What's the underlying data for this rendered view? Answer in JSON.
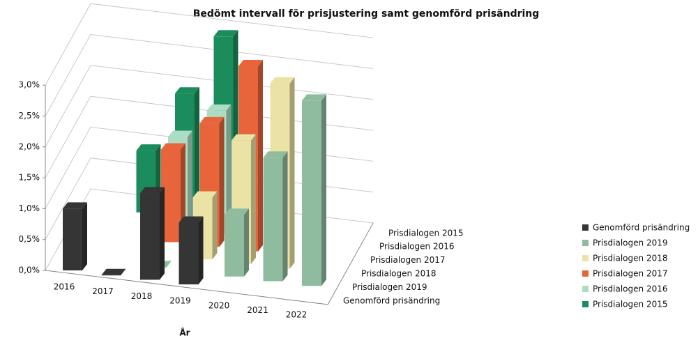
{
  "chart_data": {
    "type": "bar3d",
    "title": "Bedömt intervall för prisjustering samt genomförd prisändring",
    "x_label": "År",
    "categories": [
      "2016",
      "2017",
      "2018",
      "2019",
      "2020",
      "2021",
      "2022"
    ],
    "series": [
      {
        "name": "Genomförd prisändring",
        "color": "#353535",
        "values": [
          1.0,
          0.0,
          1.4,
          1.0,
          null,
          null,
          null
        ]
      },
      {
        "name": "Prisdialogen 2019",
        "color": "#8fbc9f",
        "values": [
          null,
          null,
          0.0,
          null,
          1.0,
          2.0,
          3.0
        ]
      },
      {
        "name": "Prisdialogen 2018",
        "color": "#ebe2a5",
        "values": [
          null,
          null,
          null,
          1.0,
          2.0,
          3.0,
          null
        ]
      },
      {
        "name": "Prisdialogen 2017",
        "color": "#e8653c",
        "values": [
          null,
          null,
          1.5,
          2.0,
          3.0,
          null,
          null
        ]
      },
      {
        "name": "Prisdialogen 2016",
        "color": "#acdcc3",
        "values": [
          null,
          null,
          1.5,
          2.0,
          null,
          null,
          null
        ]
      },
      {
        "name": "Prisdialogen 2015",
        "color": "#1b8c5c",
        "values": [
          null,
          1.0,
          2.0,
          3.0,
          null,
          null,
          null
        ]
      }
    ],
    "ylim": [
      0,
      3.0
    ],
    "yticks": [
      {
        "value": 0,
        "label": "0,0%"
      },
      {
        "value": 0.5,
        "label": "0,5%"
      },
      {
        "value": 1.0,
        "label": "1,0%"
      },
      {
        "value": 1.5,
        "label": "1,5%"
      },
      {
        "value": 2.0,
        "label": "2,0%"
      },
      {
        "value": 2.5,
        "label": "2,5%"
      },
      {
        "value": 3.0,
        "label": "3,0%"
      }
    ],
    "grid": true,
    "legend": "right"
  }
}
